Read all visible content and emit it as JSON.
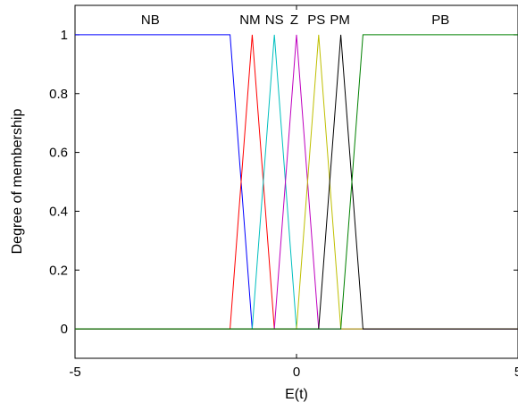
{
  "chart_data": {
    "type": "line",
    "title": "",
    "xlabel": "E(t)",
    "ylabel": "Degree of membership",
    "xlim": [
      -5,
      5
    ],
    "ylim": [
      -0.1,
      1.1
    ],
    "xticks": [
      "-5",
      "0",
      "5"
    ],
    "xtick_values": [
      -5,
      0,
      5
    ],
    "yticks": [
      "0",
      "0.2",
      "0.4",
      "0.6",
      "0.8",
      "1"
    ],
    "ytick_values": [
      0,
      0.2,
      0.4,
      0.6,
      0.8,
      1
    ],
    "grid": false,
    "series": [
      {
        "name": "NB",
        "color": "#0000ff",
        "x": [
          -5,
          -1.5,
          -1,
          5
        ],
        "y": [
          1,
          1,
          0,
          0
        ],
        "label_x": -3.3
      },
      {
        "name": "NM",
        "color": "#ff0000",
        "x": [
          -5,
          -1.5,
          -1,
          -0.5,
          5
        ],
        "y": [
          0,
          0,
          1,
          0,
          0
        ],
        "label_x": -1.05
      },
      {
        "name": "NS",
        "color": "#00bfbf",
        "x": [
          -5,
          -1,
          -0.5,
          0,
          5
        ],
        "y": [
          0,
          0,
          1,
          0,
          0
        ],
        "label_x": -0.5
      },
      {
        "name": "Z",
        "color": "#bf00bf",
        "x": [
          -5,
          -0.5,
          0,
          0.5,
          5
        ],
        "y": [
          0,
          0,
          1,
          0,
          0
        ],
        "label_x": -0.05
      },
      {
        "name": "PS",
        "color": "#bfbf00",
        "x": [
          -5,
          0,
          0.5,
          1,
          5
        ],
        "y": [
          0,
          0,
          1,
          0,
          0
        ],
        "label_x": 0.45
      },
      {
        "name": "PM",
        "color": "#000000",
        "x": [
          -5,
          0.5,
          1,
          1.5,
          5
        ],
        "y": [
          0,
          0,
          1,
          0,
          0
        ],
        "label_x": 0.98
      },
      {
        "name": "PB",
        "color": "#008000",
        "x": [
          -5,
          1,
          1.5,
          5
        ],
        "y": [
          0,
          0,
          1,
          1
        ],
        "label_x": 3.25
      }
    ]
  }
}
